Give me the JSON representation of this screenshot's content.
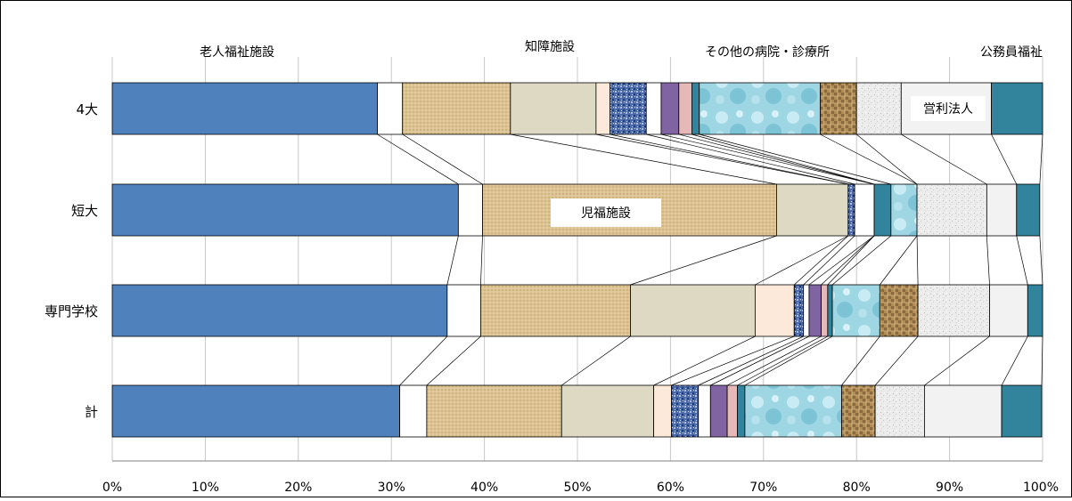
{
  "chart_data": {
    "type": "bar",
    "orientation": "horizontal",
    "stacked": "percent",
    "categories": [
      "4大",
      "短大",
      "専門学校",
      "計"
    ],
    "xlim": [
      0,
      100
    ],
    "x_ticks": [
      "0%",
      "10%",
      "20%",
      "30%",
      "40%",
      "50%",
      "60%",
      "70%",
      "80%",
      "90%",
      "100%"
    ],
    "grid": true,
    "legend": "none",
    "connector_lines": true,
    "series": [
      {
        "color": "#4f81bd",
        "fill": "solid",
        "values": [
          28.5,
          37.2,
          36.0,
          30.9
        ]
      },
      {
        "color": "#ffffff",
        "fill": "solid",
        "values": [
          2.7,
          2.6,
          3.6,
          2.9
        ]
      },
      {
        "color": "#d9c08f",
        "fill": "woven",
        "values": [
          11.6,
          31.6,
          16.1,
          14.5
        ]
      },
      {
        "color": "#ddd9c3",
        "fill": "solid",
        "values": [
          9.2,
          7.7,
          13.4,
          9.9
        ]
      },
      {
        "color": "#fde9d9",
        "fill": "solid",
        "values": [
          1.5,
          0.0,
          4.2,
          1.9
        ]
      },
      {
        "color": "#4f6fa8",
        "fill": "speckle",
        "values": [
          3.9,
          0.7,
          1.0,
          2.9
        ]
      },
      {
        "color": "#ffffff",
        "fill": "solid",
        "values": [
          1.6,
          2.1,
          0.6,
          1.3
        ]
      },
      {
        "color": "#8064a2",
        "fill": "solid",
        "values": [
          1.9,
          0.0,
          1.3,
          1.8
        ]
      },
      {
        "color": "#e6b9b8",
        "fill": "solid",
        "values": [
          1.4,
          0.0,
          0.7,
          1.1
        ]
      },
      {
        "color": "#31849b",
        "fill": "solid",
        "values": [
          0.8,
          1.8,
          0.5,
          0.8
        ]
      },
      {
        "color": "#a5d8e6",
        "fill": "waterdrop",
        "values": [
          13.0,
          2.8,
          5.1,
          10.4
        ]
      },
      {
        "color": "#b08a55",
        "fill": "weave",
        "values": [
          3.9,
          0.0,
          4.1,
          3.6
        ]
      },
      {
        "color": "#e8e8e8",
        "fill": "granite",
        "values": [
          4.8,
          7.5,
          7.7,
          5.3
        ]
      },
      {
        "color": "#f2f2f2",
        "fill": "solid",
        "values": [
          9.7,
          3.2,
          4.1,
          8.3
        ]
      },
      {
        "color": "#31849b",
        "fill": "solid",
        "values": [
          5.5,
          2.5,
          1.6,
          4.3
        ]
      }
    ],
    "annotations": [
      {
        "text": "老人福祉施設"
      },
      {
        "text": "知障施設"
      },
      {
        "text": "その他の病院・診療所"
      },
      {
        "text": "公務員福祉"
      },
      {
        "text": "営利法人"
      },
      {
        "text": "児福施設"
      }
    ]
  }
}
